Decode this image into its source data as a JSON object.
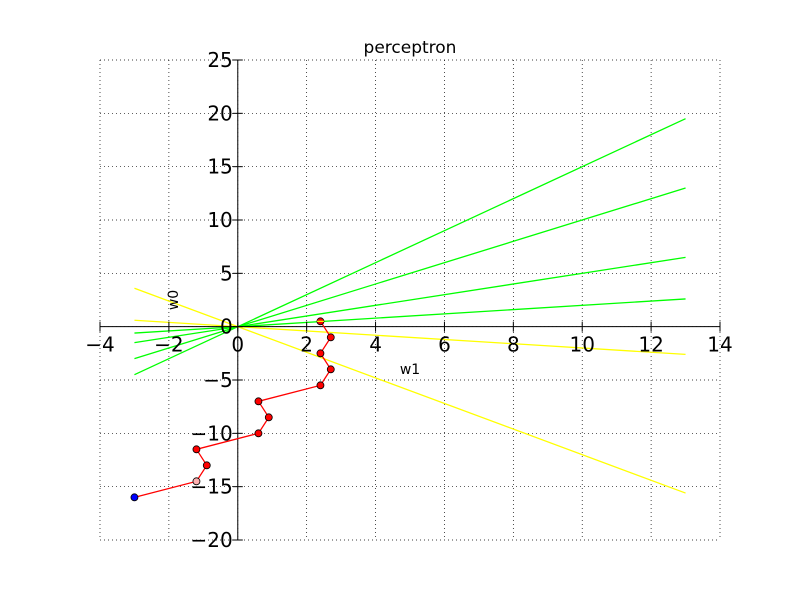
{
  "chart_data": {
    "type": "line",
    "title": "perceptron",
    "xlabel": "w1",
    "ylabel": "w0",
    "xlim": [
      -4,
      14
    ],
    "ylim": [
      -20,
      25
    ],
    "xticks": [
      -4,
      -2,
      0,
      2,
      4,
      6,
      8,
      10,
      12,
      14
    ],
    "yticks": [
      -20,
      -15,
      -10,
      -5,
      0,
      5,
      10,
      15,
      20,
      25
    ],
    "xtick_labels": [
      "−4",
      "−2",
      "0",
      "2",
      "4",
      "6",
      "8",
      "10",
      "12",
      "14"
    ],
    "ytick_labels": [
      "−20",
      "−15",
      "−10",
      "−5",
      "0",
      "5",
      "10",
      "15",
      "20",
      "25"
    ],
    "grid": true,
    "grid_style": "dotted",
    "colors": {
      "green_lines": "#00ff00",
      "yellow_lines": "#ffff00",
      "path": "#ff0000",
      "point_fill": "#ff0000",
      "start_point": "#0000ff",
      "faded_point": "#ffb0b0"
    },
    "green_lines": [
      {
        "slope": 1.5
      },
      {
        "slope": 1.0
      },
      {
        "slope": 0.5
      },
      {
        "slope": 0.2
      }
    ],
    "yellow_lines": [
      {
        "slope": -0.2
      },
      {
        "slope": -1.2
      }
    ],
    "line_x_range": [
      -3,
      13
    ],
    "path": {
      "x": [
        -3,
        -1.2,
        -0.9,
        -1.2,
        0.6,
        0.9,
        0.6,
        2.4,
        2.7,
        2.4,
        2.7,
        2.4
      ],
      "y": [
        -16,
        -14.5,
        -13,
        -11.5,
        -10,
        -8.5,
        -7,
        -5.5,
        -4,
        -2.5,
        -1,
        0.5
      ],
      "point_types": [
        "start",
        "faded",
        "normal",
        "normal",
        "normal",
        "normal",
        "normal",
        "normal",
        "normal",
        "normal",
        "normal",
        "end"
      ]
    }
  }
}
